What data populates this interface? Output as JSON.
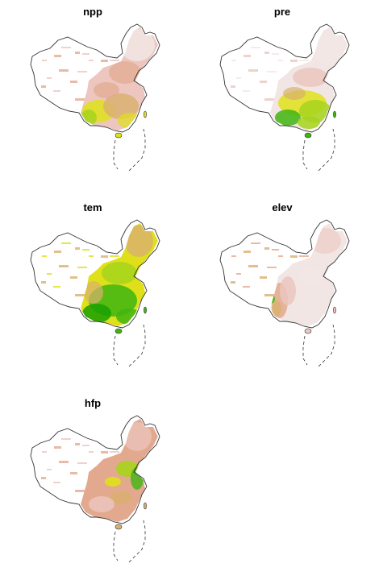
{
  "panels": [
    {
      "id": "npp",
      "title": "npp"
    },
    {
      "id": "pre",
      "title": "pre"
    },
    {
      "id": "tem",
      "title": "tem"
    },
    {
      "id": "elev",
      "title": "elev"
    },
    {
      "id": "hfp",
      "title": "hfp"
    }
  ],
  "palette": {
    "low": "#f2e6e4",
    "pink": "#ecc6bf",
    "salmon": "#e3a98f",
    "tan": "#d9b070",
    "yellow": "#dfe01a",
    "lime": "#a6d31c",
    "green": "#3fb511",
    "darkgreen": "#19a000",
    "outline": "#333333"
  }
}
